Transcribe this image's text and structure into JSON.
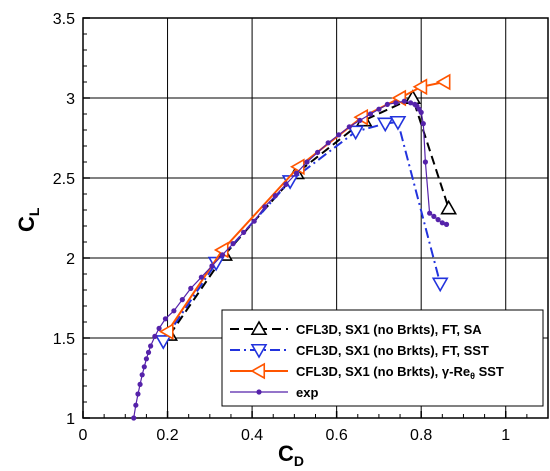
{
  "chart_data": {
    "type": "line",
    "xlabel": "C",
    "xlabel_sub": "D",
    "ylabel": "C",
    "ylabel_sub": "L",
    "xlim": [
      0,
      1.1
    ],
    "ylim": [
      1,
      3.5
    ],
    "xticks": [
      0,
      0.2,
      0.4,
      0.6,
      0.8,
      1
    ],
    "xtick_labels": [
      "0",
      "0.2",
      "0.4",
      "0.6",
      "0.8",
      "1"
    ],
    "yticks": [
      1,
      1.5,
      2,
      2.5,
      3,
      3.5
    ],
    "ytick_labels": [
      "1",
      "1.5",
      "2",
      "2.5",
      "3",
      "3.5"
    ],
    "grid": true,
    "legend_position": "bottom-right",
    "series": [
      {
        "name": "CFL3D, SX1 (no Brkts), FT, SA",
        "color": "#000000",
        "line_style": "dashed",
        "marker": "triangle-up",
        "x": [
          0.205,
          0.335,
          0.505,
          0.665,
          0.78,
          0.865
        ],
        "y": [
          1.52,
          2.02,
          2.53,
          2.86,
          3.0,
          2.31
        ]
      },
      {
        "name": "CFL3D, SX1 (no Brkts), FT, SST",
        "color": "#2233dd",
        "line_style": "dashdot",
        "marker": "triangle-down",
        "x": [
          0.19,
          0.315,
          0.49,
          0.645,
          0.715,
          0.745,
          0.845
        ],
        "y": [
          1.48,
          1.97,
          2.48,
          2.79,
          2.84,
          2.85,
          1.84
        ]
      },
      {
        "name": "CFL3D, SX1 (no Brkts), γ-Re",
        "name_sub": "θ",
        "name_suffix": " SST",
        "color": "#ff5500",
        "line_style": "solid",
        "marker": "triangle-left",
        "x": [
          0.2,
          0.33,
          0.51,
          0.66,
          0.75,
          0.8,
          0.855
        ],
        "y": [
          1.54,
          2.05,
          2.57,
          2.88,
          3.0,
          3.07,
          3.1
        ]
      },
      {
        "name": "exp",
        "color": "#5522aa",
        "line_style": "solid",
        "marker": "dot",
        "x": [
          0.12,
          0.125,
          0.13,
          0.135,
          0.14,
          0.145,
          0.15,
          0.155,
          0.16,
          0.17,
          0.18,
          0.195,
          0.215,
          0.235,
          0.255,
          0.28,
          0.305,
          0.33,
          0.355,
          0.38,
          0.405,
          0.43,
          0.455,
          0.48,
          0.505,
          0.53,
          0.555,
          0.58,
          0.605,
          0.63,
          0.655,
          0.68,
          0.7,
          0.72,
          0.74,
          0.76,
          0.775,
          0.785,
          0.79,
          0.795,
          0.8,
          0.805,
          0.81,
          0.82,
          0.83,
          0.84,
          0.85,
          0.86
        ],
        "y": [
          1.0,
          1.08,
          1.15,
          1.21,
          1.27,
          1.32,
          1.37,
          1.41,
          1.45,
          1.51,
          1.56,
          1.62,
          1.67,
          1.74,
          1.81,
          1.88,
          1.95,
          2.02,
          2.09,
          2.16,
          2.23,
          2.32,
          2.39,
          2.46,
          2.53,
          2.6,
          2.66,
          2.72,
          2.77,
          2.82,
          2.86,
          2.9,
          2.93,
          2.96,
          2.97,
          2.98,
          2.97,
          2.96,
          2.95,
          2.93,
          2.91,
          2.84,
          2.6,
          2.28,
          2.26,
          2.24,
          2.22,
          2.21
        ]
      }
    ]
  }
}
